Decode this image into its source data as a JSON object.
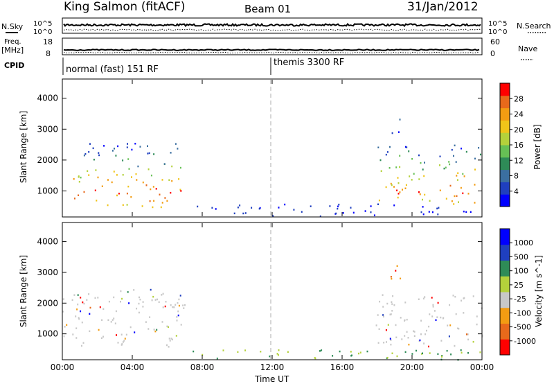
{
  "header": {
    "station": "King Salmon (fitACF)",
    "beam": "Beam 01",
    "date": "31/Jan/2012"
  },
  "left_labels": {
    "nsky": "N.Sky",
    "freq": "Freq.",
    "freq_unit": "[MHz]",
    "cpid": "CPID"
  },
  "right_labels": {
    "nsearch": "N.Search",
    "nave": "Nave"
  },
  "noise_panel": {
    "left_ticks": [
      "10^5",
      "10^0"
    ],
    "right_ticks": [
      "10^5",
      "10^0"
    ]
  },
  "freq_panel": {
    "left_ticks": [
      "18",
      "8"
    ],
    "right_ticks": [
      "60",
      "0"
    ]
  },
  "cpid_panel": {
    "modes": [
      "normal (fast) 151 RF",
      "themis 3300 RF"
    ],
    "switch_time": "12:00"
  },
  "chart_data": [
    {
      "type": "heatmap",
      "title": "Power",
      "ylabel": "Slant Range [km]",
      "xlabel": "",
      "ylim": [
        180,
        4600
      ],
      "y_ticks": [
        "4000",
        "3000",
        "2000",
        "1000"
      ],
      "colorbar": {
        "label": "Power [dB]",
        "ticks": [
          "28",
          "24",
          "20",
          "16",
          "12",
          "8",
          "4"
        ],
        "range": [
          0,
          30
        ]
      },
      "colors": [
        "#0000ff",
        "#1f3fbf",
        "#3b6fa0",
        "#2e8b57",
        "#66c055",
        "#b4d13b",
        "#f0c419",
        "#f39c12",
        "#e8691b",
        "#ff0000"
      ],
      "scatter_regions": [
        {
          "t": [
            0.6,
            6.8
          ],
          "r": [
            500,
            2600
          ],
          "level": "mixed"
        },
        {
          "t": [
            18.0,
            24.0
          ],
          "r": [
            600,
            2500
          ],
          "level": "mixed"
        },
        {
          "t": [
            18.6,
            19.3
          ],
          "r": [
            2800,
            3400
          ],
          "level": "mixed"
        },
        {
          "t": [
            7.5,
            24.0
          ],
          "r": [
            200,
            600
          ],
          "level": "low"
        }
      ]
    },
    {
      "type": "heatmap",
      "title": "Velocity",
      "ylabel": "Slant Range [km]",
      "xlabel": "Time UT",
      "ylim": [
        180,
        4600
      ],
      "y_ticks": [
        "4000",
        "3000",
        "2000",
        "1000"
      ],
      "x_ticks": [
        "00:00",
        "04:00",
        "08:00",
        "12:00",
        "16:00",
        "20:00",
        "00:00"
      ],
      "colorbar": {
        "label": "Velocity [m s^-1]",
        "ticks": [
          "1000",
          "500",
          "100",
          "25",
          "-25",
          "-100",
          "-500",
          "-1000"
        ],
        "range": [
          -1000,
          1000
        ]
      },
      "colors": [
        "#ff0000",
        "#e8691b",
        "#f39c12",
        "#c8c8c8",
        "#b4d13b",
        "#2e8b57",
        "#1f3fbf",
        "#0000ff"
      ],
      "scatter_regions": [
        {
          "t": [
            0.0,
            7.0
          ],
          "r": [
            600,
            2500
          ],
          "level": "gs"
        },
        {
          "t": [
            17.8,
            24.0
          ],
          "r": [
            600,
            2300
          ],
          "level": "gs"
        },
        {
          "t": [
            18.6,
            19.4
          ],
          "r": [
            2700,
            3400
          ],
          "level": "neg"
        },
        {
          "t": [
            7.0,
            24.0
          ],
          "r": [
            180,
            500
          ],
          "level": "pos"
        }
      ]
    }
  ],
  "colors": {
    "axis": "#000000",
    "gs_grey": "#c8c8c8",
    "dashed_line": "#c8c8c8"
  }
}
